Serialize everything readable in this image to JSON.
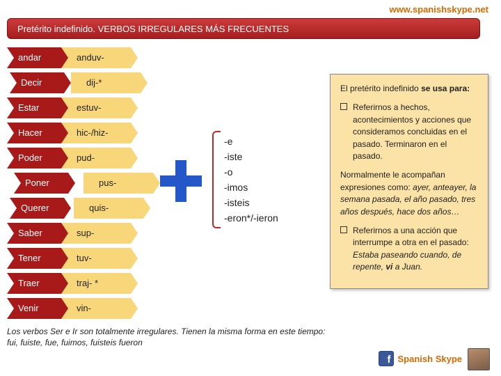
{
  "website_url": "www.spanishskype.net",
  "website_url_color": "#d96a00",
  "title": "Pretérito indefinido. VERBOS IRREGULARES MÁS FRECUENTES",
  "title_bar": {
    "bg_top": "#cc3b3b",
    "bg_bottom": "#a51f1f",
    "text_color": "#ffffff"
  },
  "verb_arrow_color": "#a81919",
  "stem_arrow_color": "#f8d77a",
  "verbs": [
    {
      "verb": "andar",
      "stem": "anduv-",
      "verb_indent": 0,
      "stem_indent": 0
    },
    {
      "verb": "Decir",
      "stem": "dij-*",
      "verb_indent": 4,
      "stem_indent": 10
    },
    {
      "verb": "Estar",
      "stem": "estuv-",
      "verb_indent": 0,
      "stem_indent": 0
    },
    {
      "verb": "Hacer",
      "stem": "hic-/hiz-",
      "verb_indent": 0,
      "stem_indent": 0
    },
    {
      "verb": "Poder",
      "stem": "pud-",
      "verb_indent": 0,
      "stem_indent": 0
    },
    {
      "verb": "Poner",
      "stem": "pus-",
      "verb_indent": 10,
      "stem_indent": 22
    },
    {
      "verb": "Querer",
      "stem": "quis-",
      "verb_indent": 4,
      "stem_indent": 14
    },
    {
      "verb": "Saber",
      "stem": "sup-",
      "verb_indent": 0,
      "stem_indent": 0
    },
    {
      "verb": "Tener",
      "stem": "tuv-",
      "verb_indent": 0,
      "stem_indent": 0
    },
    {
      "verb": "Traer",
      "stem": "traj- *",
      "verb_indent": 0,
      "stem_indent": 0
    },
    {
      "verb": "Venir",
      "stem": "vin-",
      "verb_indent": 0,
      "stem_indent": 0
    }
  ],
  "plus_color": "#2458c9",
  "bracket_color": "#b82a2a",
  "endings": [
    "-e",
    "-iste",
    "-o",
    "-imos",
    "-isteis",
    "-eron*/-ieron"
  ],
  "info": {
    "bg": "#fbe2a6",
    "intro_pre": "El pretérito indefinido ",
    "intro_bold": "se usa para:",
    "bullet1": "Referirnos a hechos, acontecimientos y acciones que consideramos concluidas en el pasado. Terminaron en el pasado.",
    "middle_pre": "Normalmente le acompañan expresiones como: ",
    "middle_italic": "ayer, anteayer, la semana pasada, el año pasado, tres años después, hace dos años…",
    "bullet2_pre": "Referirnos a una acción que interrumpe a otra en el pasado: ",
    "bullet2_italic1": "Estaba paseando cuando, de repente, ",
    "bullet2_bolditalic": "vi",
    "bullet2_italic2": " a Juan."
  },
  "footnote_l1": "Los verbos Ser e Ir son totalmente irregulares. Tienen la misma forma en este tiempo:",
  "footnote_l2": "fui, fuiste, fue, fuimos, fuisteis fueron",
  "brand": {
    "name": "Spanish Skype",
    "color": "#d96a00",
    "fb_bg": "#3b5998",
    "fb_letter": "f"
  }
}
